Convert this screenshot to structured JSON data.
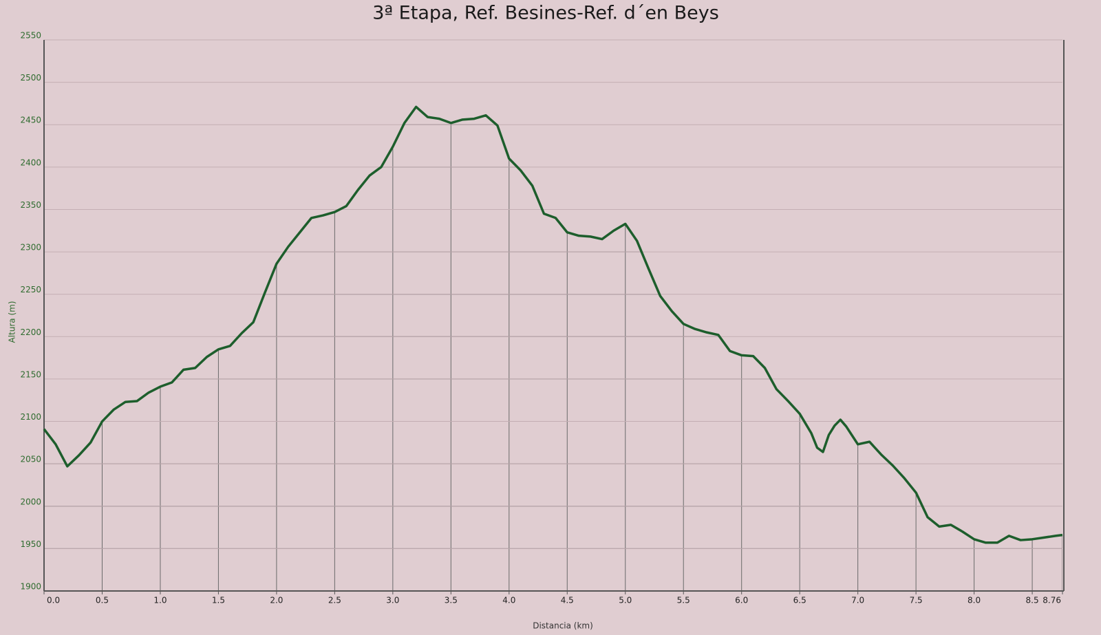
{
  "chart_data": {
    "type": "line",
    "title": "3ª Etapa, Ref. Besines-Ref. d´en Beys",
    "x_label": "Distancia (km)",
    "y_label": "Altura (m)",
    "x": [
      0,
      0.1,
      0.2,
      0.3,
      0.4,
      0.5,
      0.6,
      0.7,
      0.8,
      0.9,
      1.0,
      1.1,
      1.2,
      1.3,
      1.4,
      1.5,
      1.6,
      1.7,
      1.8,
      1.9,
      2.0,
      2.1,
      2.2,
      2.3,
      2.4,
      2.5,
      2.6,
      2.7,
      2.8,
      2.9,
      3.0,
      3.1,
      3.2,
      3.3,
      3.4,
      3.5,
      3.6,
      3.7,
      3.8,
      3.9,
      4.0,
      4.1,
      4.2,
      4.3,
      4.4,
      4.5,
      4.6,
      4.7,
      4.8,
      4.9,
      5.0,
      5.1,
      5.2,
      5.3,
      5.4,
      5.5,
      5.6,
      5.7,
      5.8,
      5.9,
      6.0,
      6.1,
      6.2,
      6.3,
      6.4,
      6.5,
      6.6,
      6.65,
      6.7,
      6.75,
      6.8,
      6.85,
      6.9,
      7.0,
      7.1,
      7.2,
      7.3,
      7.4,
      7.5,
      7.6,
      7.7,
      7.8,
      7.9,
      8.0,
      8.1,
      8.2,
      8.3,
      8.4,
      8.5,
      8.6,
      8.7,
      8.76
    ],
    "series": [
      {
        "name": "Altura",
        "color": "#1d5e2c",
        "values": [
          2091,
          2073,
          2047,
          2060,
          2075,
          2100,
          2114,
          2123,
          2124,
          2134,
          2141,
          2146,
          2161,
          2163,
          2176,
          2185,
          2189,
          2204,
          2217,
          2252,
          2286,
          2306,
          2323,
          2340,
          2343,
          2347,
          2354,
          2373,
          2390,
          2400,
          2424,
          2452,
          2471,
          2459,
          2457,
          2452,
          2456,
          2457,
          2461,
          2449,
          2410,
          2396,
          2378,
          2345,
          2340,
          2323,
          2319,
          2318,
          2315,
          2325,
          2333,
          2313,
          2280,
          2248,
          2230,
          2215,
          2209,
          2205,
          2202,
          2183,
          2178,
          2177,
          2163,
          2138,
          2124,
          2109,
          2086,
          2069,
          2064,
          2084,
          2095,
          2102,
          2094,
          2073,
          2076,
          2061,
          2048,
          2033,
          2016,
          1987,
          1976,
          1978,
          1970,
          1961,
          1957,
          1957,
          1965,
          1960,
          1961,
          1963,
          1965,
          1966
        ]
      }
    ],
    "xlim": [
      0,
      8.76
    ],
    "xticks": [
      {
        "value": 0,
        "label": "0.0"
      },
      0.5,
      {
        "value": 1,
        "label": "1.0"
      },
      1.5,
      {
        "value": 2,
        "label": "2.0"
      },
      2.5,
      {
        "value": 3,
        "label": "3.0"
      },
      3.5,
      {
        "value": 4,
        "label": "4.0"
      },
      4.5,
      {
        "value": 5,
        "label": "5.0"
      },
      5.5,
      {
        "value": 6,
        "label": "6.0"
      },
      6.5,
      {
        "value": 7,
        "label": "7.0"
      },
      7.5,
      {
        "value": 8,
        "label": "8.0"
      },
      8.5,
      8.76
    ],
    "ylim": [
      1900,
      2550
    ],
    "yticks": [
      1900,
      1950,
      2000,
      2050,
      2100,
      2150,
      2200,
      2250,
      2300,
      2350,
      2400,
      2450,
      2500,
      2550
    ],
    "grid": true
  }
}
